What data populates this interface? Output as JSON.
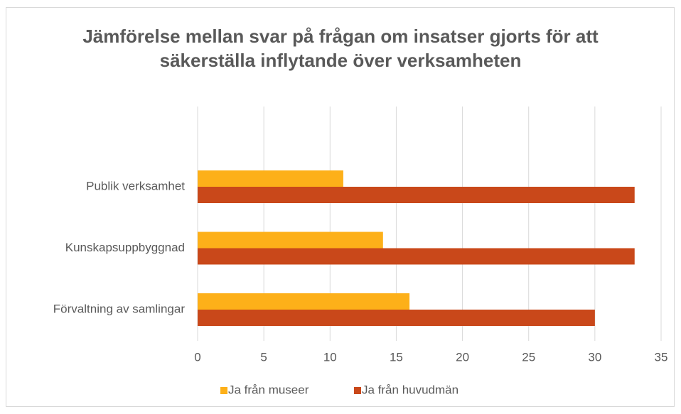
{
  "chart_data": {
    "type": "hbar",
    "title": "Jämförelse mellan svar på frågan om insatser gjorts för att säkerställa inflytande över verksamheten",
    "categories": [
      "Publik verksamhet",
      "Kunskapsuppbyggnad",
      "Förvaltning av samlingar"
    ],
    "series": [
      {
        "name": "Ja från museer",
        "color": "#fdb019",
        "values": [
          11,
          14,
          16
        ]
      },
      {
        "name": "Ja från huvudmän",
        "color": "#c9481a",
        "values": [
          33,
          33,
          30
        ]
      }
    ],
    "xlim": [
      0,
      35
    ],
    "xticks": [
      0,
      5,
      10,
      15,
      20,
      25,
      30,
      35
    ],
    "grid": true,
    "legend": "bottom"
  }
}
